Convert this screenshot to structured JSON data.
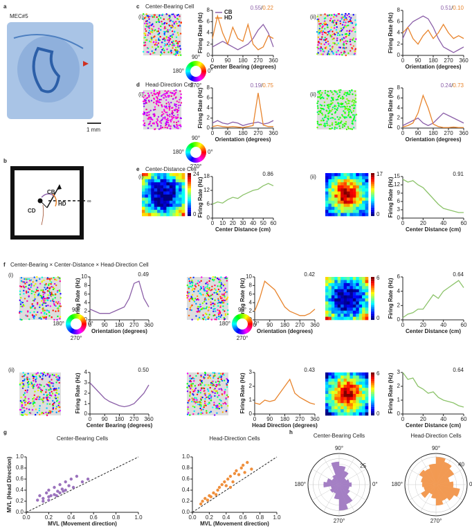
{
  "labels": {
    "letters": [
      "a",
      "b",
      "c",
      "d",
      "e",
      "f",
      "g",
      "h"
    ],
    "sample": "MEC#5",
    "scale_bar": "1 mm",
    "titles": {
      "c": "Center-Bearing Cell",
      "d": "Head-Direction Cell",
      "e": "Center-Distance Cell",
      "f": "Center-Bearing × Center-Distance × Head-Direction Cell"
    },
    "sub": [
      "(i)",
      "(ii)"
    ],
    "wheel": {
      "angles": [
        "90°",
        "180°",
        "0°",
        "270°"
      ],
      "cb": "CB",
      "hd": "HD"
    },
    "diagram": {
      "cb": "CB",
      "hd": "HD",
      "cd": "CD",
      "inf": "∞"
    },
    "colorbars": [
      {
        "max": 24,
        "min": 0
      },
      {
        "max": 17,
        "min": 0
      },
      {
        "max": 6,
        "min": 0
      },
      {
        "max": 6,
        "min": 0
      }
    ]
  },
  "chart_data": [
    {
      "type": "line",
      "xlabel": "Center Bearing (degrees)",
      "ylabel": "Firing Rate (Hz)",
      "annotation": [
        "0.55",
        "/",
        "0.22"
      ],
      "legend": "upper left",
      "x": [
        0,
        30,
        60,
        90,
        120,
        150,
        180,
        210,
        240,
        270,
        300,
        330,
        360
      ],
      "xlim": [
        0,
        360
      ],
      "xticks": [
        0,
        90,
        180,
        270,
        360
      ],
      "ylim": [
        0,
        8
      ],
      "yticks": [
        0,
        2,
        4,
        6,
        8
      ],
      "series": [
        {
          "name": "CB",
          "color": "#8b5fa8",
          "values": [
            1.5,
            2,
            2.5,
            2,
            1.5,
            1,
            1.5,
            2,
            3,
            4.5,
            5.5,
            4,
            1.5
          ]
        },
        {
          "name": "HD",
          "color": "#e8842c",
          "values": [
            3,
            7,
            4,
            2,
            5,
            3,
            2.5,
            5.5,
            2,
            1,
            1.5,
            3.5,
            3
          ]
        }
      ]
    },
    {
      "type": "line",
      "xlabel": "Orientation (degrees)",
      "ylabel": "Firing Rate (Hz)",
      "annotation": [
        "0.51",
        "/",
        "0.10"
      ],
      "x": [
        0,
        30,
        60,
        90,
        120,
        150,
        180,
        210,
        240,
        270,
        300,
        330,
        360
      ],
      "xlim": [
        0,
        360
      ],
      "xticks": [
        0,
        90,
        180,
        270,
        360
      ],
      "ylim": [
        0,
        8
      ],
      "yticks": [
        0,
        2,
        4,
        6,
        8
      ],
      "series": [
        {
          "color": "#8b5fa8",
          "values": [
            3,
            5,
            6,
            6.5,
            7,
            6.5,
            5,
            3,
            1.5,
            1,
            0.5,
            1,
            1.5
          ]
        },
        {
          "color": "#e8842c",
          "values": [
            4,
            5,
            3,
            2,
            3.5,
            4.5,
            3,
            4,
            5.5,
            4,
            3,
            3.5,
            3
          ]
        }
      ]
    },
    {
      "type": "line",
      "xlabel": "Orientation (degrees)",
      "ylabel": "Firing Rate (Hz)",
      "annotation": [
        "0.19",
        "/",
        "0.75"
      ],
      "x": [
        0,
        30,
        60,
        90,
        120,
        150,
        180,
        210,
        240,
        270,
        300,
        330,
        360
      ],
      "xlim": [
        0,
        360
      ],
      "xticks": [
        0,
        90,
        180,
        270,
        360
      ],
      "ylim": [
        0,
        8
      ],
      "yticks": [
        0,
        2,
        4,
        6,
        8
      ],
      "series": [
        {
          "color": "#8b5fa8",
          "values": [
            1,
            1.5,
            1,
            0.8,
            1.2,
            1,
            0.5,
            0.8,
            1,
            1.2,
            0.8,
            1,
            1.5
          ]
        },
        {
          "color": "#e8842c",
          "values": [
            0.3,
            0.5,
            0.3,
            0.2,
            0.3,
            0.2,
            0.1,
            0.3,
            0.5,
            7,
            0.6,
            0.3,
            0.3
          ]
        }
      ]
    },
    {
      "type": "line",
      "xlabel": "Orientation (degrees)",
      "ylabel": "Firing Rate (Hz)",
      "annotation": [
        "0.24",
        "/",
        "0.73"
      ],
      "x": [
        0,
        30,
        60,
        90,
        120,
        150,
        180,
        210,
        240,
        270,
        300,
        330,
        360
      ],
      "xlim": [
        0,
        360
      ],
      "xticks": [
        0,
        90,
        180,
        270,
        360
      ],
      "ylim": [
        0,
        8
      ],
      "yticks": [
        0,
        2,
        4,
        6,
        8
      ],
      "series": [
        {
          "color": "#8b5fa8",
          "values": [
            0.5,
            1,
            1.5,
            2,
            1,
            0.5,
            1,
            2,
            3,
            2.5,
            2,
            1.5,
            1
          ]
        },
        {
          "color": "#e8842c",
          "values": [
            0.2,
            0.5,
            1,
            3,
            6.5,
            4,
            0.8,
            0.3,
            0.1,
            0.1,
            0.2,
            0.1,
            0.1
          ]
        }
      ]
    },
    {
      "type": "line",
      "xlabel": "Center Distance (cm)",
      "ylabel": "Firing Rate (Hz)",
      "annotation": [
        "0.86"
      ],
      "x": [
        0,
        5,
        10,
        15,
        20,
        25,
        30,
        35,
        40,
        45,
        50,
        55,
        60
      ],
      "xlim": [
        0,
        60
      ],
      "xticks": [
        0,
        10,
        20,
        30,
        40,
        50,
        60
      ],
      "ylim": [
        0,
        18
      ],
      "yticks": [
        0,
        6,
        12,
        18
      ],
      "series": [
        {
          "color": "#8cc36a",
          "values": [
            6,
            7,
            6.5,
            8,
            9,
            8.5,
            10,
            11,
            12,
            12.5,
            14,
            15,
            14
          ]
        }
      ]
    },
    {
      "type": "line",
      "xlabel": "Center Distance (cm)",
      "ylabel": "Firing Rate (Hz)",
      "annotation": [
        "0.91"
      ],
      "x": [
        0,
        5,
        10,
        15,
        20,
        25,
        30,
        35,
        40,
        45,
        50,
        55,
        60
      ],
      "xlim": [
        0,
        60
      ],
      "xticks": [
        0,
        20,
        40,
        60
      ],
      "ylim": [
        0,
        15
      ],
      "yticks": [
        0,
        3,
        6,
        9,
        12,
        15
      ],
      "series": [
        {
          "color": "#8cc36a",
          "values": [
            14,
            13,
            13.5,
            12,
            11,
            9,
            7,
            5,
            3.5,
            3,
            2.5,
            2,
            2
          ]
        }
      ]
    },
    {
      "type": "line",
      "xlabel": "Orientation (degrees)",
      "ylabel": "Firing Rate (Hz)",
      "annotation": [
        "0.49"
      ],
      "x": [
        0,
        30,
        60,
        90,
        120,
        150,
        180,
        210,
        240,
        270,
        300,
        330,
        360
      ],
      "xlim": [
        0,
        360
      ],
      "xticks": [
        0,
        90,
        180,
        270,
        360
      ],
      "ylim": [
        0,
        10
      ],
      "yticks": [
        0,
        2,
        4,
        6,
        8,
        10
      ],
      "series": [
        {
          "color": "#8b5fa8",
          "values": [
            2.5,
            2,
            1.5,
            1.5,
            1.5,
            2,
            2.5,
            3,
            5,
            8.5,
            9,
            5,
            3
          ]
        }
      ]
    },
    {
      "type": "line",
      "xlabel": "Orientation (degrees)",
      "ylabel": "Firing Rate (Hz)",
      "annotation": [
        "0.42"
      ],
      "x": [
        0,
        30,
        60,
        90,
        120,
        150,
        180,
        210,
        240,
        270,
        300,
        330,
        360
      ],
      "xlim": [
        0,
        360
      ],
      "xticks": [
        0,
        90,
        180,
        270,
        360
      ],
      "ylim": [
        0,
        10
      ],
      "yticks": [
        0,
        2,
        4,
        6,
        8,
        10
      ],
      "series": [
        {
          "color": "#e8842c",
          "values": [
            2,
            5,
            9,
            8,
            7,
            5,
            3,
            2,
            1.5,
            1,
            1,
            1.5,
            2.5
          ]
        }
      ]
    },
    {
      "type": "line",
      "xlabel": "Center Distance (cm)",
      "ylabel": "Firing Rate (Hz)",
      "annotation": [
        "0.64"
      ],
      "x": [
        0,
        5,
        10,
        15,
        20,
        25,
        30,
        35,
        40,
        45,
        50,
        55,
        60
      ],
      "xlim": [
        0,
        60
      ],
      "xticks": [
        0,
        20,
        40,
        60
      ],
      "ylim": [
        0,
        6
      ],
      "yticks": [
        0,
        2,
        4,
        6
      ],
      "series": [
        {
          "color": "#8cc36a",
          "values": [
            0.3,
            0.8,
            1,
            1.5,
            1.5,
            2.5,
            3.5,
            3,
            4,
            4.5,
            5,
            5.5,
            4.5
          ]
        }
      ]
    },
    {
      "type": "line",
      "xlabel": "Center Bearing (degrees)",
      "ylabel": "Firing Rate (Hz)",
      "annotation": [
        "0.50"
      ],
      "x": [
        0,
        30,
        60,
        90,
        120,
        150,
        180,
        210,
        240,
        270,
        300,
        330,
        360
      ],
      "xlim": [
        0,
        360
      ],
      "xticks": [
        0,
        90,
        180,
        270,
        360
      ],
      "ylim": [
        0,
        4
      ],
      "yticks": [
        0,
        1,
        2,
        3,
        4
      ],
      "series": [
        {
          "color": "#8b5fa8",
          "values": [
            3,
            2.5,
            2,
            1.5,
            1.2,
            1,
            0.8,
            0.7,
            0.8,
            1,
            1.5,
            2,
            2.8
          ]
        }
      ]
    },
    {
      "type": "line",
      "xlabel": "Head Direction (degrees)",
      "ylabel": "Firing Rate (Hz)",
      "annotation": [
        "0.43"
      ],
      "x": [
        0,
        30,
        60,
        90,
        120,
        150,
        180,
        210,
        240,
        270,
        300,
        330,
        360
      ],
      "xlim": [
        0,
        360
      ],
      "xticks": [
        0,
        90,
        180,
        270,
        360
      ],
      "ylim": [
        0,
        3
      ],
      "yticks": [
        0,
        1,
        2,
        3
      ],
      "series": [
        {
          "color": "#e8842c",
          "values": [
            0.8,
            0.7,
            1,
            0.9,
            1,
            1.5,
            2,
            2.5,
            1.5,
            1.2,
            1,
            0.8,
            0.7
          ]
        }
      ]
    },
    {
      "type": "line",
      "xlabel": "Center Distance (cm)",
      "ylabel": "Firing Rate (Hz)",
      "annotation": [
        "0.64"
      ],
      "x": [
        0,
        5,
        10,
        15,
        20,
        25,
        30,
        35,
        40,
        45,
        50,
        55,
        60
      ],
      "xlim": [
        0,
        60
      ],
      "xticks": [
        0,
        20,
        40,
        60
      ],
      "ylim": [
        0,
        3
      ],
      "yticks": [
        0,
        1,
        2,
        3
      ],
      "series": [
        {
          "color": "#8cc36a",
          "values": [
            3,
            2.5,
            2.6,
            2,
            1.8,
            1.5,
            1.6,
            1.2,
            1,
            0.9,
            0.8,
            0.6,
            0.5
          ]
        }
      ]
    },
    {
      "type": "scatter",
      "title": "Center-Bearing Cells",
      "xlabel": "MVL (Movement direction)",
      "ylabel": "MVL (Head Direction)",
      "color": "#9b72bd",
      "xlim": [
        0,
        1
      ],
      "xticks": [
        {
          "value": 0,
          "label": "0.0"
        },
        0.2,
        0.4,
        0.6,
        0.8,
        {
          "value": 1,
          "label": "1.0"
        }
      ],
      "ylim": [
        0,
        1
      ],
      "yticks": [
        {
          "value": 0,
          "label": "0.0"
        },
        0.2,
        0.4,
        0.6,
        0.8,
        {
          "value": 1,
          "label": "1.0"
        }
      ],
      "x": [
        0.1,
        0.12,
        0.15,
        0.18,
        0.2,
        0.2,
        0.22,
        0.25,
        0.25,
        0.28,
        0.3,
        0.3,
        0.32,
        0.35,
        0.35,
        0.38,
        0.4,
        0.42,
        0.45,
        0.5,
        0.15,
        0.2,
        0.27,
        0.33,
        0.55
      ],
      "y": [
        0.22,
        0.3,
        0.25,
        0.35,
        0.28,
        0.4,
        0.3,
        0.45,
        0.32,
        0.38,
        0.5,
        0.35,
        0.42,
        0.55,
        0.4,
        0.48,
        0.6,
        0.45,
        0.65,
        0.55,
        0.2,
        0.22,
        0.3,
        0.38,
        0.6
      ]
    },
    {
      "type": "scatter",
      "title": "Head-Direction Cells",
      "xlabel": "MVL (Movement direction)",
      "ylabel": "",
      "color": "#ef8f3c",
      "xlim": [
        0,
        1
      ],
      "xticks": [
        {
          "value": 0,
          "label": "0.0"
        },
        0.2,
        0.4,
        0.6,
        0.8,
        {
          "value": 1,
          "label": "1.0"
        }
      ],
      "ylim": [
        0,
        1
      ],
      "yticks": [
        {
          "value": 0,
          "label": "0.0"
        },
        0.2,
        0.4,
        0.6,
        0.8,
        {
          "value": 1,
          "label": "1.0"
        }
      ],
      "x": [
        0.1,
        0.12,
        0.15,
        0.2,
        0.22,
        0.25,
        0.3,
        0.32,
        0.35,
        0.38,
        0.4,
        0.42,
        0.45,
        0.48,
        0.5,
        0.52,
        0.55,
        0.58,
        0.6,
        0.62,
        0.65,
        0.7,
        0.18,
        0.28,
        0.45
      ],
      "y": [
        0.15,
        0.2,
        0.25,
        0.3,
        0.28,
        0.35,
        0.4,
        0.45,
        0.5,
        0.55,
        0.48,
        0.6,
        0.65,
        0.55,
        0.7,
        0.75,
        0.68,
        0.8,
        0.85,
        0.72,
        0.9,
        0.78,
        0.22,
        0.32,
        0.45
      ]
    },
    {
      "type": "polar",
      "title": "Center-Bearing Cells",
      "color": "#a47fc4",
      "angle_labels": [
        "90°",
        "180°",
        "0°",
        "270°"
      ],
      "rlim": [
        0,
        30
      ],
      "rticks": [
        25
      ],
      "angles": [
        0,
        20,
        40,
        60,
        80,
        100,
        120,
        140,
        160,
        180,
        200,
        220,
        240,
        260,
        280,
        300,
        320,
        340
      ],
      "values": [
        12,
        10,
        8,
        14,
        18,
        22,
        10,
        8,
        12,
        15,
        8,
        10,
        9,
        14,
        25,
        20,
        12,
        10
      ]
    },
    {
      "type": "polar",
      "title": "Head-Direction Cells",
      "color": "#f29a53",
      "angle_labels": [
        "90°",
        "180°",
        "0°",
        "270°"
      ],
      "rlim": [
        0,
        45
      ],
      "rticks": [
        40
      ],
      "angles": [
        0,
        20,
        40,
        60,
        80,
        100,
        120,
        140,
        160,
        180,
        200,
        220,
        240,
        260,
        280,
        300,
        320,
        340
      ],
      "values": [
        25,
        20,
        30,
        35,
        40,
        30,
        25,
        28,
        22,
        20,
        18,
        25,
        15,
        20,
        30,
        25,
        30,
        35
      ]
    }
  ]
}
